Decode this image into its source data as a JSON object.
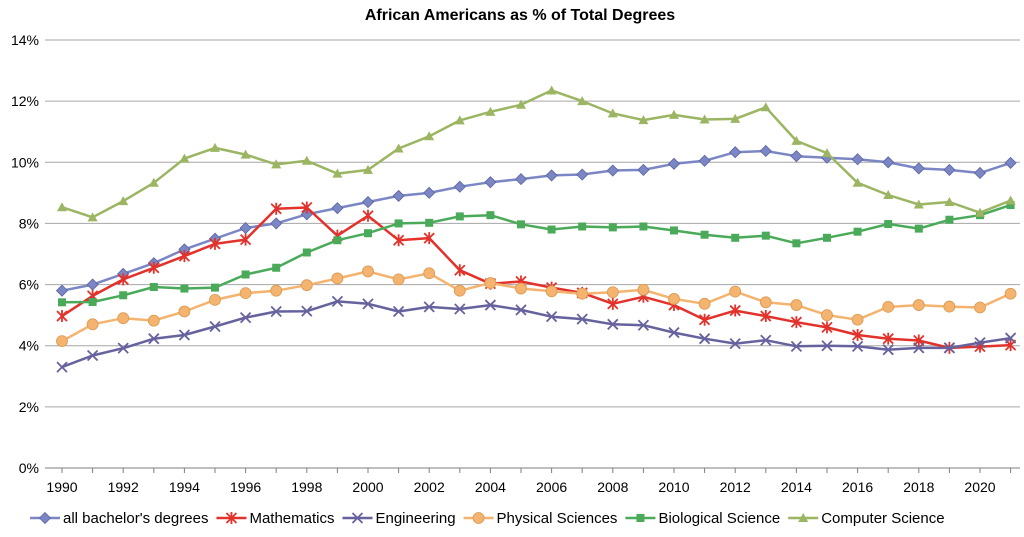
{
  "chart_data": {
    "type": "line",
    "title": "African Americans as % of Total Degrees",
    "xlabel": "",
    "ylabel": "",
    "x": [
      1990,
      1991,
      1992,
      1993,
      1994,
      1995,
      1996,
      1997,
      1998,
      1999,
      2000,
      2001,
      2002,
      2003,
      2004,
      2005,
      2006,
      2007,
      2008,
      2009,
      2010,
      2011,
      2012,
      2013,
      2014,
      2015,
      2016,
      2017,
      2018,
      2019,
      2020,
      2021
    ],
    "x_tick_labels": [
      "1990",
      "1992",
      "1994",
      "1996",
      "1998",
      "2000",
      "2002",
      "2004",
      "2006",
      "2008",
      "2010",
      "2012",
      "2014",
      "2016",
      "2018",
      "2020"
    ],
    "y_tick_labels": [
      "0%",
      "2%",
      "4%",
      "6%",
      "8%",
      "10%",
      "12%",
      "14%"
    ],
    "ylim": [
      0,
      14
    ],
    "grid": "horizontal",
    "legend_position": "bottom",
    "series": [
      {
        "name": "all bachelor's degrees",
        "color": "#7B86C4",
        "marker": "diamond",
        "values": [
          5.8,
          6.0,
          6.35,
          6.7,
          7.15,
          7.5,
          7.85,
          8.0,
          8.3,
          8.5,
          8.7,
          8.9,
          9.0,
          9.2,
          9.35,
          9.45,
          9.57,
          9.6,
          9.73,
          9.75,
          9.95,
          10.05,
          10.33,
          10.37,
          10.2,
          10.15,
          10.1,
          10.0,
          9.8,
          9.75,
          9.65,
          9.98
        ]
      },
      {
        "name": "Mathematics",
        "color": "#E2322B",
        "marker": "star",
        "values": [
          4.97,
          5.63,
          6.17,
          6.55,
          6.93,
          7.33,
          7.47,
          8.48,
          8.52,
          7.6,
          8.25,
          7.45,
          7.52,
          6.47,
          6.03,
          6.1,
          5.9,
          5.73,
          5.37,
          5.6,
          5.33,
          4.85,
          5.15,
          4.97,
          4.77,
          4.6,
          4.35,
          4.23,
          4.17,
          3.93,
          3.97,
          4.02
        ]
      },
      {
        "name": "Engineering",
        "color": "#65629E",
        "marker": "x",
        "values": [
          3.3,
          3.68,
          3.92,
          4.23,
          4.35,
          4.63,
          4.92,
          5.12,
          5.13,
          5.45,
          5.37,
          5.12,
          5.27,
          5.2,
          5.33,
          5.17,
          4.95,
          4.87,
          4.7,
          4.67,
          4.43,
          4.23,
          4.07,
          4.18,
          3.98,
          4.0,
          3.98,
          3.87,
          3.93,
          3.93,
          4.1,
          4.25
        ]
      },
      {
        "name": "Physical Sciences",
        "color": "#F4B36E",
        "marker": "circle",
        "values": [
          4.15,
          4.7,
          4.9,
          4.82,
          5.12,
          5.5,
          5.72,
          5.8,
          5.98,
          6.2,
          6.43,
          6.17,
          6.37,
          5.8,
          6.05,
          5.87,
          5.78,
          5.7,
          5.75,
          5.83,
          5.53,
          5.37,
          5.77,
          5.42,
          5.33,
          5.0,
          4.85,
          5.27,
          5.33,
          5.28,
          5.25,
          5.7
        ]
      },
      {
        "name": "Biological Science",
        "color": "#4AAA5A",
        "marker": "square",
        "values": [
          5.42,
          5.43,
          5.65,
          5.92,
          5.87,
          5.9,
          6.33,
          6.55,
          7.05,
          7.45,
          7.68,
          8.0,
          8.02,
          8.23,
          8.27,
          7.97,
          7.8,
          7.9,
          7.87,
          7.9,
          7.77,
          7.63,
          7.53,
          7.6,
          7.35,
          7.53,
          7.73,
          7.98,
          7.83,
          8.12,
          8.27,
          8.6
        ]
      },
      {
        "name": "Computer Science",
        "color": "#9BB563",
        "marker": "triangle",
        "values": [
          8.53,
          8.2,
          8.73,
          9.33,
          10.12,
          10.47,
          10.25,
          9.93,
          10.05,
          9.63,
          9.75,
          10.45,
          10.85,
          11.37,
          11.65,
          11.88,
          12.35,
          12.0,
          11.6,
          11.38,
          11.55,
          11.4,
          11.42,
          11.8,
          10.7,
          10.3,
          9.33,
          8.93,
          8.62,
          8.7,
          8.35,
          8.75
        ]
      }
    ]
  }
}
